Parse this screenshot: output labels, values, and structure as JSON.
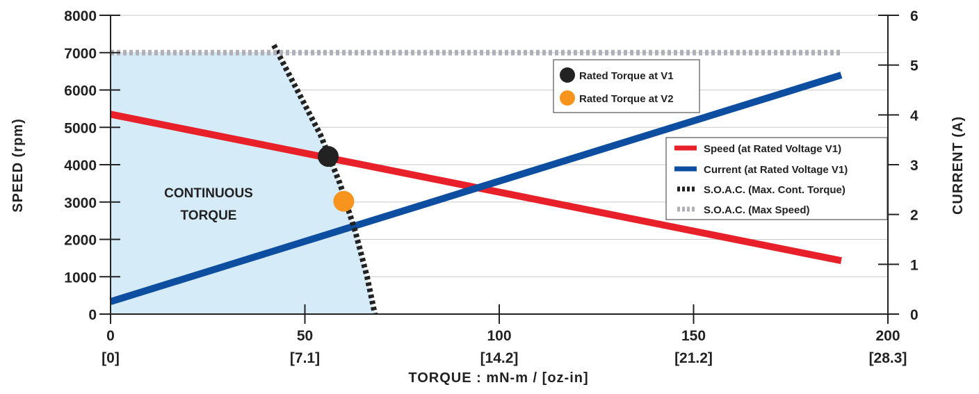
{
  "chart_data": {
    "type": "line",
    "xlabel": "TORQUE : mN-m / [oz-in]",
    "ylabel": "SPEED (rpm)",
    "y2label": "CURRENT (A)",
    "xlim": [
      0,
      200
    ],
    "ylim": [
      0,
      8000
    ],
    "y2lim": [
      0,
      6
    ],
    "x_ticks": [
      {
        "value": 0,
        "label": "0",
        "sublabel": "[0]"
      },
      {
        "value": 50,
        "label": "50",
        "sublabel": "[7.1]"
      },
      {
        "value": 100,
        "label": "100",
        "sublabel": "[14.2]"
      },
      {
        "value": 150,
        "label": "150",
        "sublabel": "[21.2]"
      },
      {
        "value": 200,
        "label": "200",
        "sublabel": "[28.3]"
      }
    ],
    "y_ticks": [
      0,
      1000,
      2000,
      3000,
      4000,
      5000,
      6000,
      7000,
      8000
    ],
    "y2_ticks": [
      0,
      1,
      2,
      3,
      4,
      5,
      6
    ],
    "grid": "horizontal",
    "region_label": [
      "CONTINUOUS",
      "TORQUE"
    ],
    "series": [
      {
        "name": "Speed (at Rated Voltage V1)",
        "axis": "left",
        "color": "#e8202a",
        "style": "solid",
        "x": [
          0,
          188
        ],
        "y": [
          5350,
          1430
        ]
      },
      {
        "name": "Current (at Rated Voltage V1)",
        "axis": "right",
        "color": "#0d4ea1",
        "style": "solid",
        "x": [
          0,
          188
        ],
        "y": [
          0.25,
          4.8
        ]
      },
      {
        "name": "S.O.A.C. (Max. Cont. Torque)",
        "axis": "left",
        "color": "#222222",
        "style": "dashed-thick",
        "x": [
          42,
          48,
          54,
          59,
          63,
          66,
          68
        ],
        "y": [
          7200,
          6000,
          4800,
          3500,
          2200,
          1000,
          0
        ]
      },
      {
        "name": "S.O.A.C. (Max Speed)",
        "axis": "left",
        "color": "#b0b0b8",
        "style": "dashed",
        "x": [
          0,
          188
        ],
        "y": [
          7000,
          7000
        ]
      }
    ],
    "points": [
      {
        "name": "Rated Torque at V1",
        "x": 56,
        "y": 4220,
        "color": "#222222"
      },
      {
        "name": "Rated Torque at V2",
        "x": 60,
        "y": 3020,
        "color": "#f7941d"
      }
    ],
    "region": {
      "fill": "#d6ebf8",
      "boundary": "S.O.A.C."
    },
    "legend_placement": "right"
  }
}
